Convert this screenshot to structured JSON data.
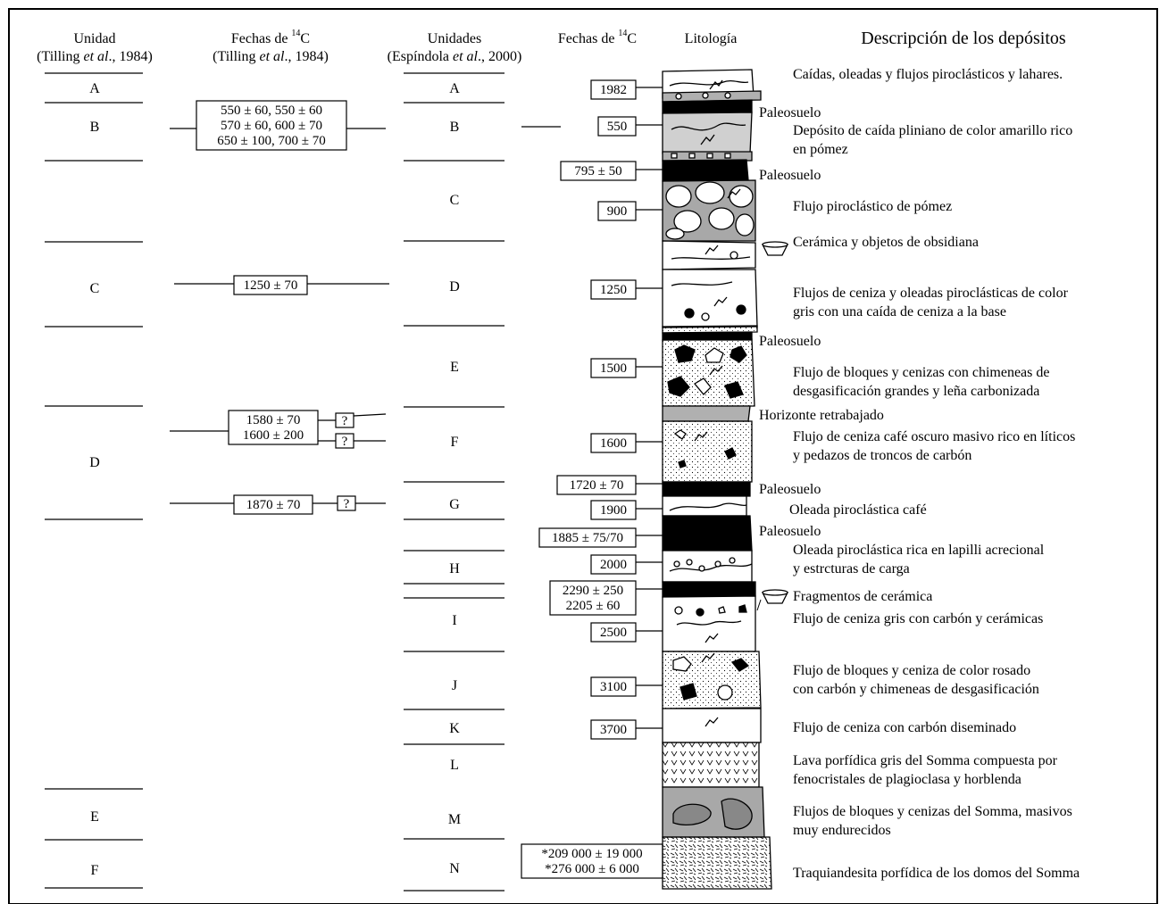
{
  "headers": {
    "unidad": "Unidad",
    "unidad_ref_a": "(Tilling ",
    "unidad_ref_it": "et al",
    "unidad_ref_b": "., 1984)",
    "fechas1_a": "Fechas de ",
    "fechas1_sup": "14",
    "fechas1_b": "C",
    "fechas1_ref_a": "(Tilling ",
    "fechas1_ref_it": "et al",
    "fechas1_ref_b": "., 1984)",
    "unidades": "Unidades",
    "unidades_ref_a": "(Espíndola ",
    "unidades_ref_it": "et al",
    "unidades_ref_b": "., 2000)",
    "fechas2_a": "Fechas de ",
    "fechas2_sup": "14",
    "fechas2_b": "C",
    "litologia": "Litología",
    "descripcion": "Descripción de los depósitos"
  },
  "tilling_units": [
    "A",
    "B",
    "C",
    "D",
    "E",
    "F"
  ],
  "tilling_dates": [
    [
      "550 ± 60,  550 ± 60",
      "570 ± 60,  600 ± 70",
      "650 ± 100, 700 ± 70"
    ],
    [
      "1250 ± 70"
    ],
    [
      "1580 ± 70",
      "1600 ± 200"
    ],
    [
      "1870 ± 70"
    ]
  ],
  "question_mark": "?",
  "espindola_units": [
    "A",
    "B",
    "C",
    "D",
    "E",
    "F",
    "G",
    "H",
    "I",
    "J",
    "K",
    "L",
    "M",
    "N"
  ],
  "espindola_dates": [
    [
      "1982"
    ],
    [
      "550"
    ],
    [
      "795 ± 50"
    ],
    [
      "900"
    ],
    [
      "1250"
    ],
    [
      "1500"
    ],
    [
      "1600"
    ],
    [
      "1720 ± 70"
    ],
    [
      "1900"
    ],
    [
      "1885 ± 75/70"
    ],
    [
      "2000"
    ],
    [
      "2290 ± 250",
      "2205 ± 60"
    ],
    [
      "2500"
    ],
    [
      "3100"
    ],
    [
      "3700"
    ],
    [
      "*209 000 ± 19 000",
      "*276 000 ± 6 000"
    ]
  ],
  "descriptions": [
    [
      "Caídas, oleadas y flujos piroclásticos y lahares."
    ],
    [
      "Paleosuelo"
    ],
    [
      "Depósito de caída pliniano de color amarillo rico",
      "en pómez"
    ],
    [
      "Paleosuelo"
    ],
    [
      "Flujo piroclástico de pómez"
    ],
    [
      "Cerámica y objetos de obsidiana"
    ],
    [
      "Flujos de ceniza y oleadas piroclásticas de color",
      "gris con una caída de ceniza a la base"
    ],
    [
      "Paleosuelo"
    ],
    [
      "Flujo de bloques y cenizas con chimeneas de",
      "desgasificación grandes y leña carbonizada"
    ],
    [
      "Horizonte retrabajado"
    ],
    [
      "Flujo de ceniza café oscuro masivo rico en líticos",
      "y pedazos de troncos de carbón"
    ],
    [
      "Paleosuelo"
    ],
    [
      "Oleada piroclástica café"
    ],
    [
      "Paleosuelo"
    ],
    [
      "Oleada piroclástica rica en lapilli acrecional",
      "y estrcturas de carga"
    ],
    [
      "Fragmentos de cerámica"
    ],
    [
      "Flujo de ceniza gris con carbón y cerámicas"
    ],
    [
      "Flujo de bloques y ceniza de color rosado",
      "con carbón y chimeneas de desgasificación"
    ],
    [
      "Flujo de ceniza con carbón diseminado"
    ],
    [
      "Lava porfídica gris del Somma compuesta por",
      "fenocristales de plagioclasa y horblenda"
    ],
    [
      "Flujos de bloques y cenizas del Somma, masivos",
      "muy endurecidos"
    ],
    [
      "Traquiandesita porfídica de los domos del Somma"
    ]
  ],
  "colors": {
    "ink": "#000000",
    "light_gray": "#d0d0d0",
    "mid_gray": "#a8a8a8",
    "dark_gray": "#888888",
    "paleosol": "#000000"
  }
}
